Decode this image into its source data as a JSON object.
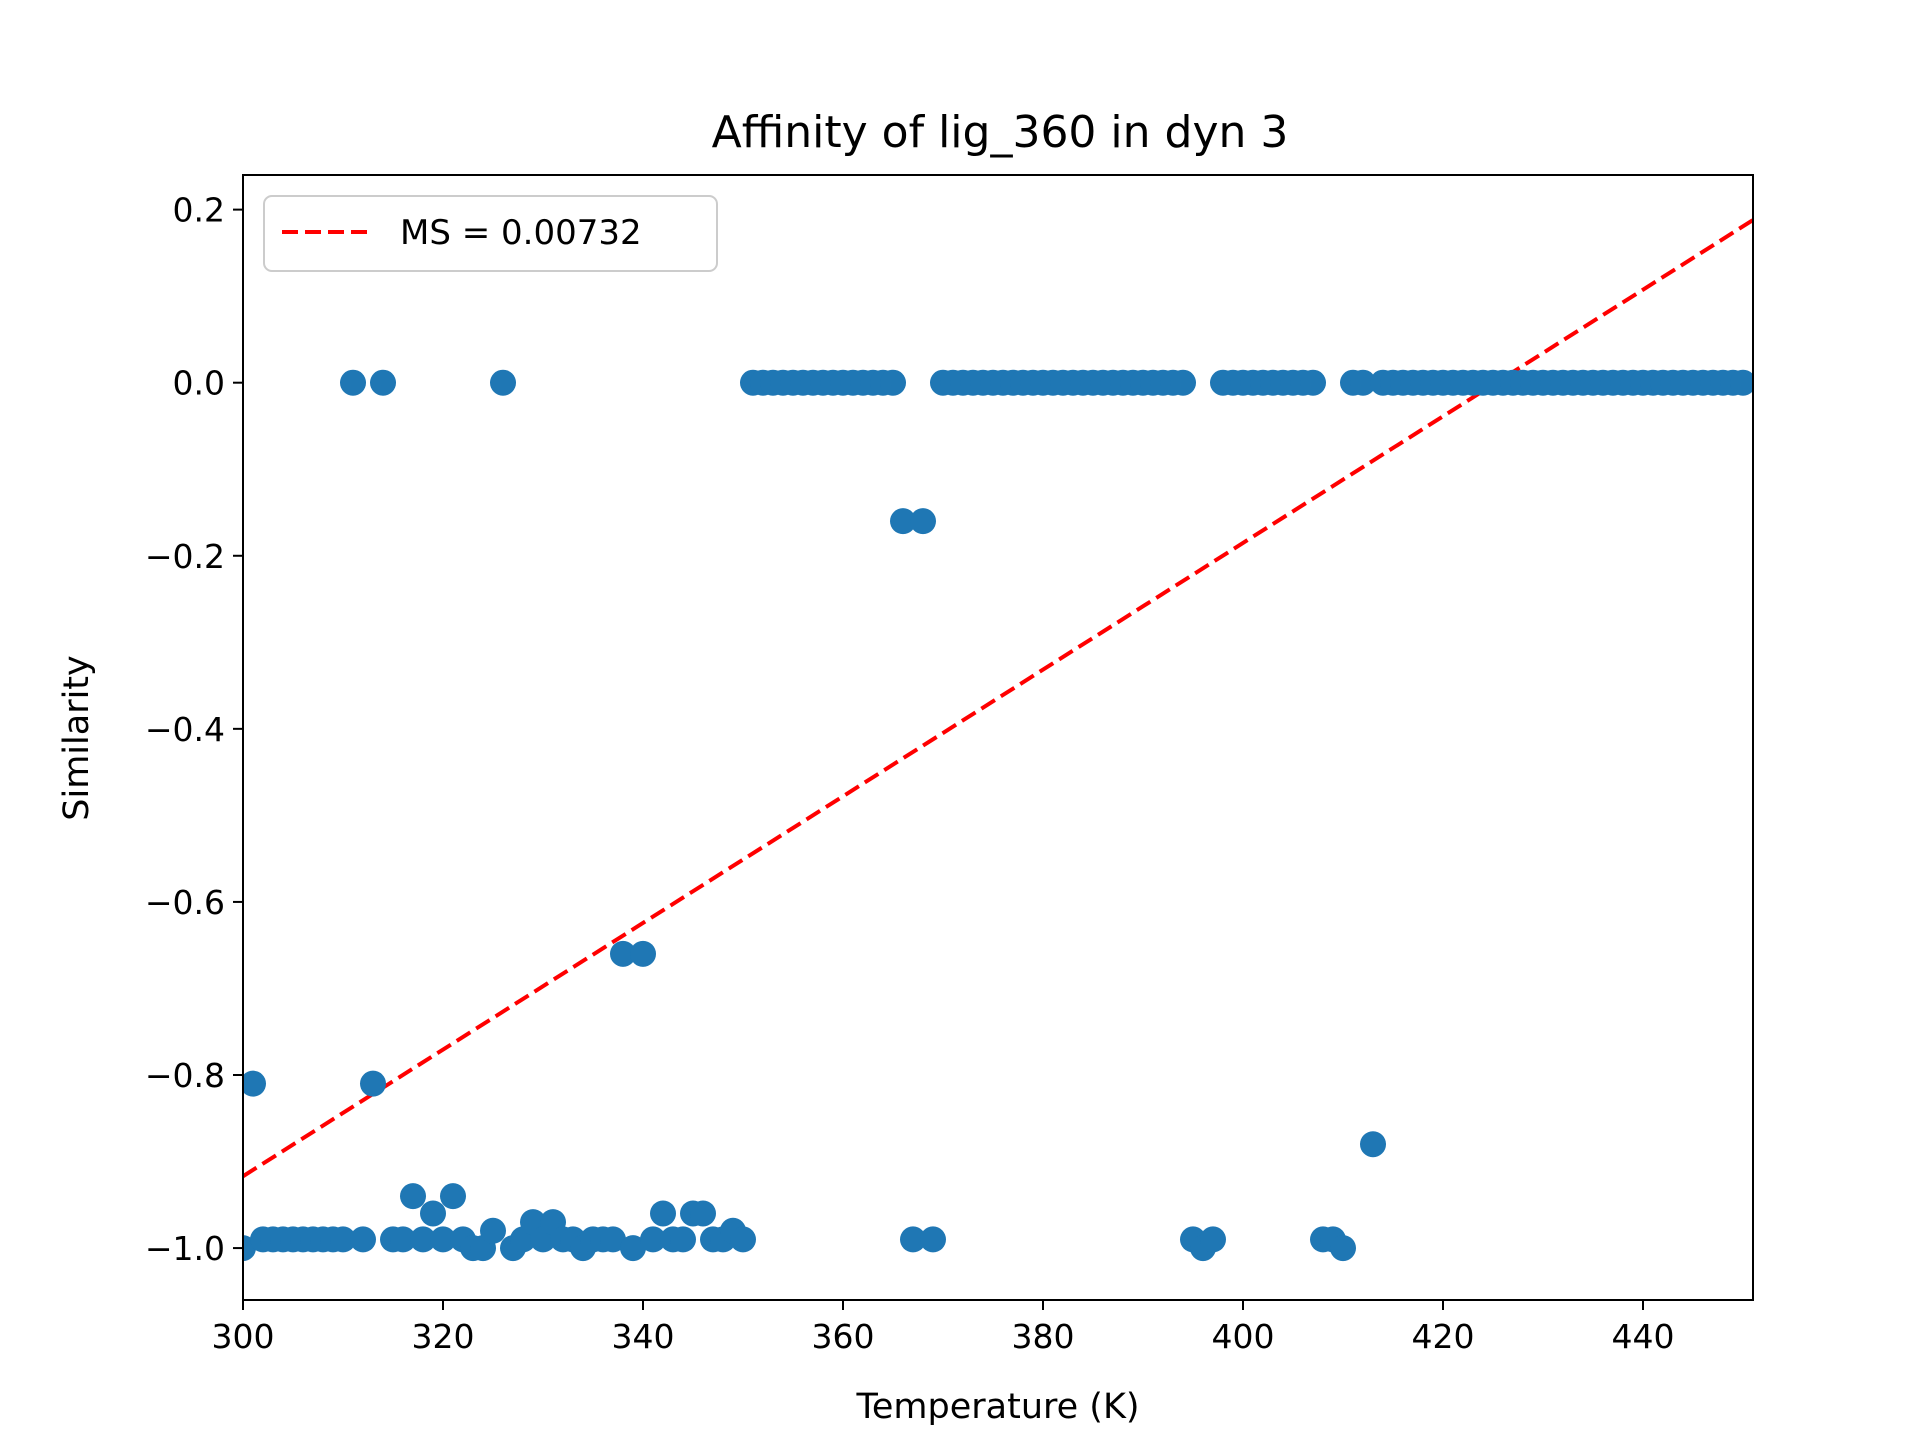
{
  "chart_data": {
    "type": "scatter",
    "title": "Affinity of lig_360 in dyn 3",
    "xlabel": "Temperature (K)",
    "ylabel": "Similarity",
    "xlim": [
      300,
      451
    ],
    "ylim": [
      -1.06,
      0.24
    ],
    "x_ticks": [
      300,
      320,
      340,
      360,
      380,
      400,
      420,
      440
    ],
    "y_ticks": [
      0.2,
      0.0,
      -0.2,
      -0.4,
      -0.6,
      -0.8,
      -1.0
    ],
    "x_tick_labels": [
      "300",
      "320",
      "340",
      "360",
      "380",
      "400",
      "420",
      "440"
    ],
    "y_tick_labels": [
      "0.2",
      "0.0",
      "−0.2",
      "−0.4",
      "−0.6",
      "−0.8",
      "−1.0"
    ],
    "grid": false,
    "legend": {
      "position": "top-left",
      "entries": [
        "MS = 0.00732"
      ]
    },
    "colors": {
      "points": "#1f77b4",
      "fit": "#ff0000"
    },
    "series": [
      {
        "kind": "scatter",
        "points": [
          [
            300,
            -1.0
          ],
          [
            301,
            -0.81
          ],
          [
            302,
            -0.99
          ],
          [
            303,
            -0.99
          ],
          [
            304,
            -0.99
          ],
          [
            305,
            -0.99
          ],
          [
            306,
            -0.99
          ],
          [
            307,
            -0.99
          ],
          [
            308,
            -0.99
          ],
          [
            309,
            -0.99
          ],
          [
            310,
            -0.99
          ],
          [
            311,
            0.0
          ],
          [
            312,
            -0.99
          ],
          [
            313,
            -0.81
          ],
          [
            314,
            0.0
          ],
          [
            315,
            -0.99
          ],
          [
            316,
            -0.99
          ],
          [
            317,
            -0.94
          ],
          [
            318,
            -0.99
          ],
          [
            319,
            -0.96
          ],
          [
            320,
            -0.99
          ],
          [
            321,
            -0.94
          ],
          [
            322,
            -0.99
          ],
          [
            323,
            -1.0
          ],
          [
            324,
            -1.0
          ],
          [
            325,
            -0.98
          ],
          [
            326,
            0.0
          ],
          [
            327,
            -1.0
          ],
          [
            328,
            -0.99
          ],
          [
            329,
            -0.97
          ],
          [
            330,
            -0.99
          ],
          [
            331,
            -0.97
          ],
          [
            332,
            -0.99
          ],
          [
            333,
            -0.99
          ],
          [
            334,
            -1.0
          ],
          [
            335,
            -0.99
          ],
          [
            336,
            -0.99
          ],
          [
            337,
            -0.99
          ],
          [
            338,
            -0.66
          ],
          [
            339,
            -1.0
          ],
          [
            340,
            -0.66
          ],
          [
            341,
            -0.99
          ],
          [
            342,
            -0.96
          ],
          [
            343,
            -0.99
          ],
          [
            344,
            -0.99
          ],
          [
            345,
            -0.96
          ],
          [
            346,
            -0.96
          ],
          [
            347,
            -0.99
          ],
          [
            348,
            -0.99
          ],
          [
            349,
            -0.98
          ],
          [
            350,
            -0.99
          ],
          [
            351,
            0.0
          ],
          [
            352,
            0.0
          ],
          [
            353,
            0.0
          ],
          [
            354,
            0.0
          ],
          [
            355,
            0.0
          ],
          [
            356,
            0.0
          ],
          [
            357,
            0.0
          ],
          [
            358,
            0.0
          ],
          [
            359,
            0.0
          ],
          [
            360,
            0.0
          ],
          [
            361,
            0.0
          ],
          [
            362,
            0.0
          ],
          [
            363,
            0.0
          ],
          [
            364,
            0.0
          ],
          [
            365,
            0.0
          ],
          [
            366,
            -0.16
          ],
          [
            367,
            -0.99
          ],
          [
            368,
            -0.16
          ],
          [
            369,
            -0.99
          ],
          [
            370,
            0.0
          ],
          [
            371,
            0.0
          ],
          [
            372,
            0.0
          ],
          [
            373,
            0.0
          ],
          [
            374,
            0.0
          ],
          [
            375,
            0.0
          ],
          [
            376,
            0.0
          ],
          [
            377,
            0.0
          ],
          [
            378,
            0.0
          ],
          [
            379,
            0.0
          ],
          [
            380,
            0.0
          ],
          [
            381,
            0.0
          ],
          [
            382,
            0.0
          ],
          [
            383,
            0.0
          ],
          [
            384,
            0.0
          ],
          [
            385,
            0.0
          ],
          [
            386,
            0.0
          ],
          [
            387,
            0.0
          ],
          [
            388,
            0.0
          ],
          [
            389,
            0.0
          ],
          [
            390,
            0.0
          ],
          [
            391,
            0.0
          ],
          [
            392,
            0.0
          ],
          [
            393,
            0.0
          ],
          [
            394,
            0.0
          ],
          [
            395,
            -0.99
          ],
          [
            396,
            -1.0
          ],
          [
            397,
            -0.99
          ],
          [
            398,
            0.0
          ],
          [
            399,
            0.0
          ],
          [
            400,
            0.0
          ],
          [
            401,
            0.0
          ],
          [
            402,
            0.0
          ],
          [
            403,
            0.0
          ],
          [
            404,
            0.0
          ],
          [
            405,
            0.0
          ],
          [
            406,
            0.0
          ],
          [
            407,
            0.0
          ],
          [
            408,
            -0.99
          ],
          [
            409,
            -0.99
          ],
          [
            410,
            -1.0
          ],
          [
            411,
            0.0
          ],
          [
            412,
            0.0
          ],
          [
            413,
            -0.88
          ],
          [
            414,
            0.0
          ],
          [
            415,
            0.0
          ],
          [
            416,
            0.0
          ],
          [
            417,
            0.0
          ],
          [
            418,
            0.0
          ],
          [
            419,
            0.0
          ],
          [
            420,
            0.0
          ],
          [
            421,
            0.0
          ],
          [
            422,
            0.0
          ],
          [
            423,
            0.0
          ],
          [
            424,
            0.0
          ],
          [
            425,
            0.0
          ],
          [
            426,
            0.0
          ],
          [
            427,
            0.0
          ],
          [
            428,
            0.0
          ],
          [
            429,
            0.0
          ],
          [
            430,
            0.0
          ],
          [
            431,
            0.0
          ],
          [
            432,
            0.0
          ],
          [
            433,
            0.0
          ],
          [
            434,
            0.0
          ],
          [
            435,
            0.0
          ],
          [
            436,
            0.0
          ],
          [
            437,
            0.0
          ],
          [
            438,
            0.0
          ],
          [
            439,
            0.0
          ],
          [
            440,
            0.0
          ],
          [
            441,
            0.0
          ],
          [
            442,
            0.0
          ],
          [
            443,
            0.0
          ],
          [
            444,
            0.0
          ],
          [
            445,
            0.0
          ],
          [
            446,
            0.0
          ],
          [
            447,
            0.0
          ],
          [
            448,
            0.0
          ],
          [
            449,
            0.0
          ],
          [
            450,
            0.0
          ]
        ]
      },
      {
        "kind": "line",
        "name": "MS = 0.00732",
        "style": "dashed",
        "points": [
          [
            300,
            -0.917
          ],
          [
            451,
            0.188
          ]
        ]
      }
    ]
  }
}
